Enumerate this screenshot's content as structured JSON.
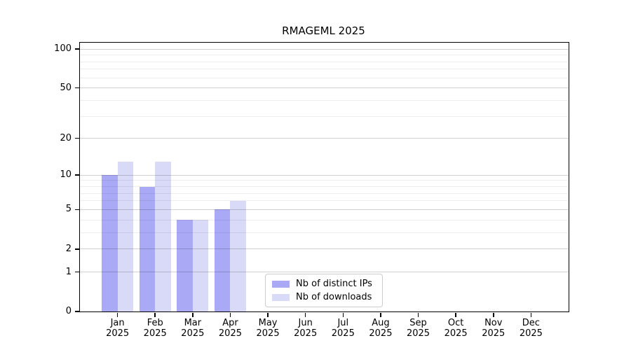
{
  "figure": {
    "background": "#ffffff"
  },
  "chart_data": {
    "type": "bar",
    "title": "RMAGEML 2025",
    "xlabel": "",
    "ylabel": "",
    "categories": [
      "Jan",
      "Feb",
      "Mar",
      "Apr",
      "May",
      "Jun",
      "Jul",
      "Aug",
      "Sep",
      "Oct",
      "Nov",
      "Dec"
    ],
    "category_sublabel": "2025",
    "series": [
      {
        "name": "Nb of distinct IPs",
        "color": "#a9a9f5",
        "values": [
          10,
          8,
          4,
          5,
          0,
          0,
          0,
          0,
          0,
          0,
          0,
          0
        ]
      },
      {
        "name": "Nb of downloads",
        "color": "#d9d9f8",
        "values": [
          13,
          13,
          4,
          6,
          0,
          0,
          0,
          0,
          0,
          0,
          0,
          0
        ]
      }
    ],
    "yscale": "log1p",
    "ylim": [
      0,
      112
    ],
    "yticks": [
      0,
      1,
      2,
      5,
      10,
      20,
      50,
      100
    ],
    "yticks_minor": [
      3,
      4,
      6,
      7,
      8,
      9,
      30,
      40,
      60,
      70,
      80,
      90
    ],
    "grid": true,
    "legend": {
      "position": "lower-center",
      "items": [
        "Nb of distinct IPs",
        "Nb of downloads"
      ]
    }
  }
}
